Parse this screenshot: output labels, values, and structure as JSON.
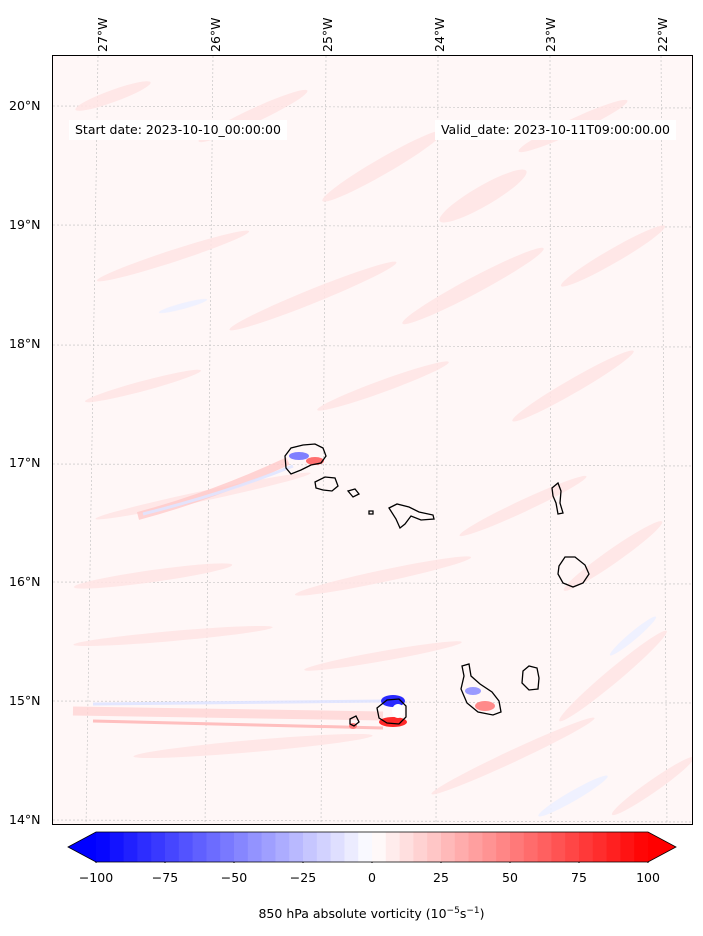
{
  "map": {
    "start_date_label": "Start date: 2023-10-10_00:00:00",
    "valid_date_label": "Valid_date: 2023-10-11T09:00:00.00",
    "lon_labels": [
      "27°W",
      "26°W",
      "25°W",
      "24°W",
      "23°W",
      "22°W"
    ],
    "lat_labels": [
      "20°N",
      "19°N",
      "18°N",
      "17°N",
      "16°N",
      "15°N",
      "14°N"
    ],
    "lon_range": [
      -27.4,
      -21.8
    ],
    "lat_range": [
      13.95,
      20.45
    ],
    "gridlines": true,
    "islands": [
      "Santo Antão",
      "São Vicente",
      "Santa Luzia",
      "Branco",
      "São Nicolau",
      "Sal",
      "Boa Vista",
      "Maio",
      "Santiago",
      "Fogo",
      "Brava"
    ]
  },
  "colorbar": {
    "label_prefix": "850 hPa absolute vorticity (10",
    "label_exp1": "−5",
    "label_mid": "s",
    "label_exp2": "−1",
    "label_suffix": ")",
    "ticks": [
      "−100",
      "−75",
      "−50",
      "−25",
      "0",
      "25",
      "50",
      "75",
      "100"
    ],
    "min": -100,
    "max": 100,
    "cmap": "bwr",
    "extend": "both"
  },
  "colors": {
    "negative": "#0000ff",
    "neutral": "#ffffff",
    "positive": "#ff0000",
    "coastline": "#000000"
  }
}
